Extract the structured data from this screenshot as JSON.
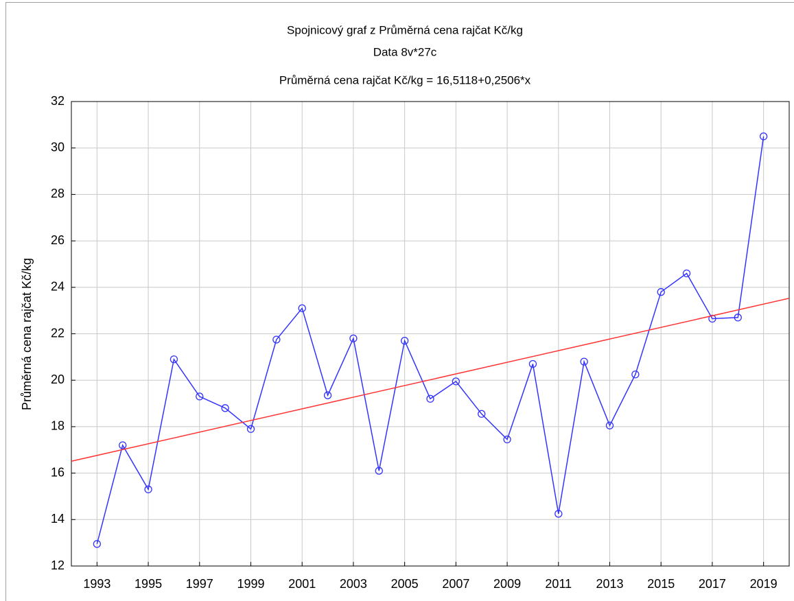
{
  "chart_data": {
    "type": "line",
    "title": "Spojnicový graf z Průměrná cena rajčat Kč/kg",
    "subtitle": "Data 8v*27c",
    "annotation": "Průměrná cena rajčat Kč/kg = 16,5118+0,2506*x",
    "y_label": "Průměrná cena rajčat Kč/kg",
    "x": [
      1993,
      1994,
      1995,
      1996,
      1997,
      1998,
      1999,
      2000,
      2001,
      2002,
      2003,
      2004,
      2005,
      2006,
      2007,
      2008,
      2009,
      2010,
      2011,
      2012,
      2013,
      2014,
      2015,
      2016,
      2017,
      2018,
      2019
    ],
    "series": [
      {
        "color": "#3333ff",
        "values": [
          12.95,
          17.2,
          15.3,
          20.9,
          19.3,
          18.8,
          17.9,
          21.75,
          23.1,
          19.35,
          21.8,
          16.1,
          21.7,
          19.2,
          19.95,
          18.55,
          17.45,
          20.7,
          14.25,
          20.8,
          18.05,
          20.25,
          23.8,
          24.6,
          22.65,
          22.7,
          30.5
        ]
      }
    ],
    "fit": {
      "intercept": 16.5118,
      "slope": 0.2506,
      "color": "#ff3333"
    },
    "xlim": [
      1992,
      2020
    ],
    "xticks": [
      1993,
      1995,
      1997,
      1999,
      2001,
      2003,
      2005,
      2007,
      2009,
      2011,
      2013,
      2015,
      2017,
      2019
    ],
    "ylim": [
      12,
      32
    ],
    "yticks": [
      12,
      14,
      16,
      18,
      20,
      22,
      24,
      26,
      28,
      30,
      32
    ],
    "grid": true
  }
}
